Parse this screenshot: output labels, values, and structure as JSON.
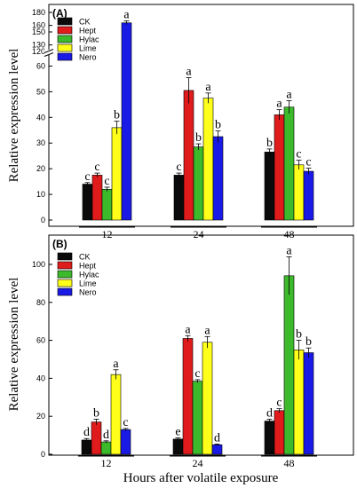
{
  "colors": {
    "CK": "#0a0a0a",
    "Hept": "#e01b1b",
    "Hylac": "#3cba2c",
    "Lime": "#ffff1a",
    "Nero": "#1a1ae6"
  },
  "chart_data": [
    {
      "type": "bar",
      "panel_label": "(A)",
      "ylabel": "Relative expression level",
      "categories": [
        "12",
        "24",
        "48"
      ],
      "y_axis_break": [
        65,
        120
      ],
      "lower_ticks": [
        0,
        10,
        20,
        30,
        40,
        50,
        60
      ],
      "upper_ticks": [
        120,
        130,
        150,
        160,
        180
      ],
      "legend": {
        "position": "top-left",
        "entries": [
          "CK",
          "Hept",
          "Hylac",
          "Lime",
          "Nero"
        ]
      },
      "series": [
        {
          "name": "CK",
          "values": [
            14,
            17.5,
            26.5
          ],
          "errors": [
            0.6,
            0.8,
            1.2
          ],
          "labels": [
            "c",
            "c",
            "b"
          ]
        },
        {
          "name": "Hept",
          "values": [
            17.5,
            50.5,
            41
          ],
          "errors": [
            0.8,
            5,
            2
          ],
          "labels": [
            "c",
            "a",
            "a"
          ]
        },
        {
          "name": "Hylac",
          "values": [
            12,
            28.5,
            44
          ],
          "errors": [
            0.8,
            1.2,
            2.5
          ],
          "labels": [
            "c",
            "b",
            "a"
          ]
        },
        {
          "name": "Lime",
          "values": [
            36,
            47.5,
            21.5
          ],
          "errors": [
            2.5,
            2,
            1.8
          ],
          "labels": [
            "b",
            "a",
            "c"
          ]
        },
        {
          "name": "Nero",
          "values": [
            164,
            32.5,
            19
          ],
          "errors": [
            3,
            2.2,
            1.2
          ],
          "labels": [
            "a",
            "b",
            "c"
          ]
        }
      ]
    },
    {
      "type": "bar",
      "panel_label": "(B)",
      "ylabel": "Relative expression level",
      "xlabel": "Hours after volatile exposure",
      "categories": [
        "12",
        "24",
        "48"
      ],
      "ylim": [
        0,
        112
      ],
      "ticks": [
        0,
        20,
        40,
        60,
        80,
        100
      ],
      "legend": {
        "position": "top-left",
        "entries": [
          "CK",
          "Hept",
          "Hylac",
          "Lime",
          "Nero"
        ]
      },
      "series": [
        {
          "name": "CK",
          "values": [
            7.5,
            8,
            17.5
          ],
          "errors": [
            0.8,
            0.6,
            1
          ],
          "labels": [
            "d",
            "e",
            "d"
          ]
        },
        {
          "name": "Hept",
          "values": [
            17,
            61,
            23
          ],
          "errors": [
            1.5,
            1.5,
            1
          ],
          "labels": [
            "b",
            "a",
            "c"
          ]
        },
        {
          "name": "Hylac",
          "values": [
            6.5,
            38.5,
            94
          ],
          "errors": [
            0.6,
            0.8,
            10
          ],
          "labels": [
            "d",
            "c",
            "a"
          ]
        },
        {
          "name": "Lime",
          "values": [
            42,
            59,
            55
          ],
          "errors": [
            2.5,
            3,
            5
          ],
          "labels": [
            "a",
            "a",
            "b"
          ]
        },
        {
          "name": "Nero",
          "values": [
            13,
            5,
            53.5
          ],
          "errors": [
            0.6,
            0.4,
            2.5
          ],
          "labels": [
            "c",
            "d",
            "b"
          ]
        }
      ]
    }
  ]
}
